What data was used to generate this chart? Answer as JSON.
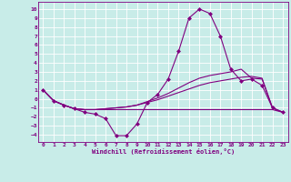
{
  "bg_color": "#c8ece8",
  "grid_color": "#ffffff",
  "line_color": "#800080",
  "xlabel": "Windchill (Refroidissement éolien,°C)",
  "xlim": [
    -0.5,
    23.5
  ],
  "ylim": [
    -4.8,
    10.8
  ],
  "xticks": [
    0,
    1,
    2,
    3,
    4,
    5,
    6,
    7,
    8,
    9,
    10,
    11,
    12,
    13,
    14,
    15,
    16,
    17,
    18,
    19,
    20,
    21,
    22,
    23
  ],
  "yticks": [
    -4,
    -3,
    -2,
    -1,
    0,
    1,
    2,
    3,
    4,
    5,
    6,
    7,
    8,
    9,
    10
  ],
  "line1_x": [
    0,
    1,
    2,
    3,
    4,
    5,
    6,
    7,
    8,
    9,
    10,
    11,
    12,
    13,
    14,
    15,
    16,
    17,
    18,
    19,
    20,
    21,
    22,
    23
  ],
  "line1_y": [
    1.0,
    -0.2,
    -0.7,
    -1.1,
    -1.5,
    -1.7,
    -2.2,
    -4.1,
    -4.1,
    -2.8,
    -0.4,
    0.5,
    2.2,
    5.3,
    9.0,
    10.0,
    9.5,
    7.0,
    3.3,
    2.0,
    2.2,
    1.5,
    -1.0,
    -1.5
  ],
  "line2_x": [
    0,
    1,
    2,
    3,
    4,
    5,
    6,
    7,
    8,
    9,
    10,
    11,
    12,
    13,
    14,
    15,
    16,
    17,
    18,
    19,
    20,
    21,
    22,
    23
  ],
  "line2_y": [
    1.0,
    -0.2,
    -0.7,
    -1.1,
    -1.2,
    -1.2,
    -1.2,
    -1.2,
    -1.2,
    -1.2,
    -1.2,
    -1.2,
    -1.2,
    -1.2,
    -1.2,
    -1.2,
    -1.2,
    -1.2,
    -1.2,
    -1.2,
    -1.2,
    -1.2,
    -1.2,
    -1.5
  ],
  "line3_x": [
    0,
    1,
    2,
    3,
    4,
    5,
    6,
    7,
    8,
    9,
    10,
    11,
    12,
    13,
    14,
    15,
    16,
    17,
    18,
    19,
    20,
    21,
    22,
    23
  ],
  "line3_y": [
    1.0,
    -0.2,
    -0.7,
    -1.1,
    -1.2,
    -1.2,
    -1.1,
    -1.0,
    -0.9,
    -0.7,
    -0.4,
    -0.1,
    0.3,
    0.7,
    1.1,
    1.5,
    1.8,
    2.0,
    2.2,
    2.4,
    2.5,
    2.3,
    -1.0,
    -1.5
  ],
  "line4_x": [
    0,
    1,
    2,
    3,
    4,
    5,
    6,
    7,
    8,
    9,
    10,
    11,
    12,
    13,
    14,
    15,
    16,
    17,
    18,
    19,
    20,
    21,
    22,
    23
  ],
  "line4_y": [
    1.0,
    -0.2,
    -0.7,
    -1.1,
    -1.2,
    -1.2,
    -1.1,
    -1.0,
    -0.9,
    -0.7,
    -0.3,
    0.1,
    0.6,
    1.2,
    1.8,
    2.3,
    2.6,
    2.8,
    3.0,
    3.3,
    2.3,
    2.2,
    -1.0,
    -1.5
  ]
}
